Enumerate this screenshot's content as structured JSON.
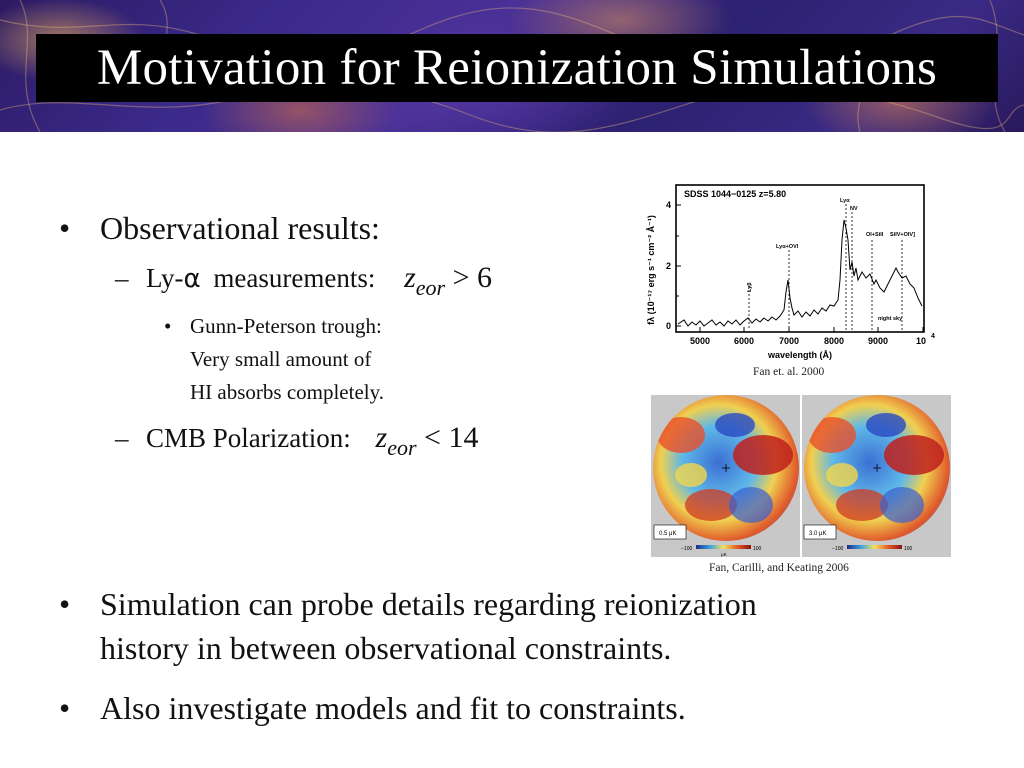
{
  "title": "Motivation for Reionization Simulations",
  "bullets": {
    "observational": "Observational results:",
    "lya_prefix": "Ly-",
    "lya_alpha": "α",
    "lya_label": "measurements:",
    "lya_math": {
      "var": "z",
      "sub": "eor",
      "op": ">",
      "value": "6"
    },
    "gp_line1": "Gunn-Peterson trough:",
    "gp_line2": "Very small amount of",
    "gp_line3": "HI absorbs completely.",
    "cmb_label": "CMB Polarization:",
    "cmb_math": {
      "var": "z",
      "sub": "eor",
      "op": "<",
      "value": "14"
    },
    "simulation_line1": "Simulation can probe details regarding reionization",
    "simulation_line2": "history in between observational constraints.",
    "also": "Also investigate models and fit to constraints."
  },
  "spectrum": {
    "header": "SDSS 1044−0125  z=5.80",
    "x_label": "wavelength (Å)",
    "x_ticks": [
      "5000",
      "6000",
      "7000",
      "8000",
      "9000",
      "10"
    ],
    "x_tick_exp": "4",
    "y_ticks": [
      "0",
      "2",
      "4"
    ],
    "y_label": "fλ (10⁻¹⁷ erg s⁻¹ cm⁻² Å⁻¹)",
    "lines": [
      "Lyβ",
      "Lyα+OVI",
      "Lyα",
      "NV",
      "OI+SiII",
      "SiIV+OIV]",
      "night sky"
    ],
    "caption": "Fan et. al. 2000"
  },
  "cmb_maps": {
    "left_scale": "0.5 μK",
    "right_scale": "3.0 μK",
    "colorbar_min": "−100",
    "colorbar_max": "100",
    "colorbar_unit": "μK",
    "caption": "Fan, Carilli, and Keating 2006"
  },
  "colors": {
    "title_bg": "#000000",
    "title_text": "#ffffff",
    "banner": "#3b2a8a"
  }
}
